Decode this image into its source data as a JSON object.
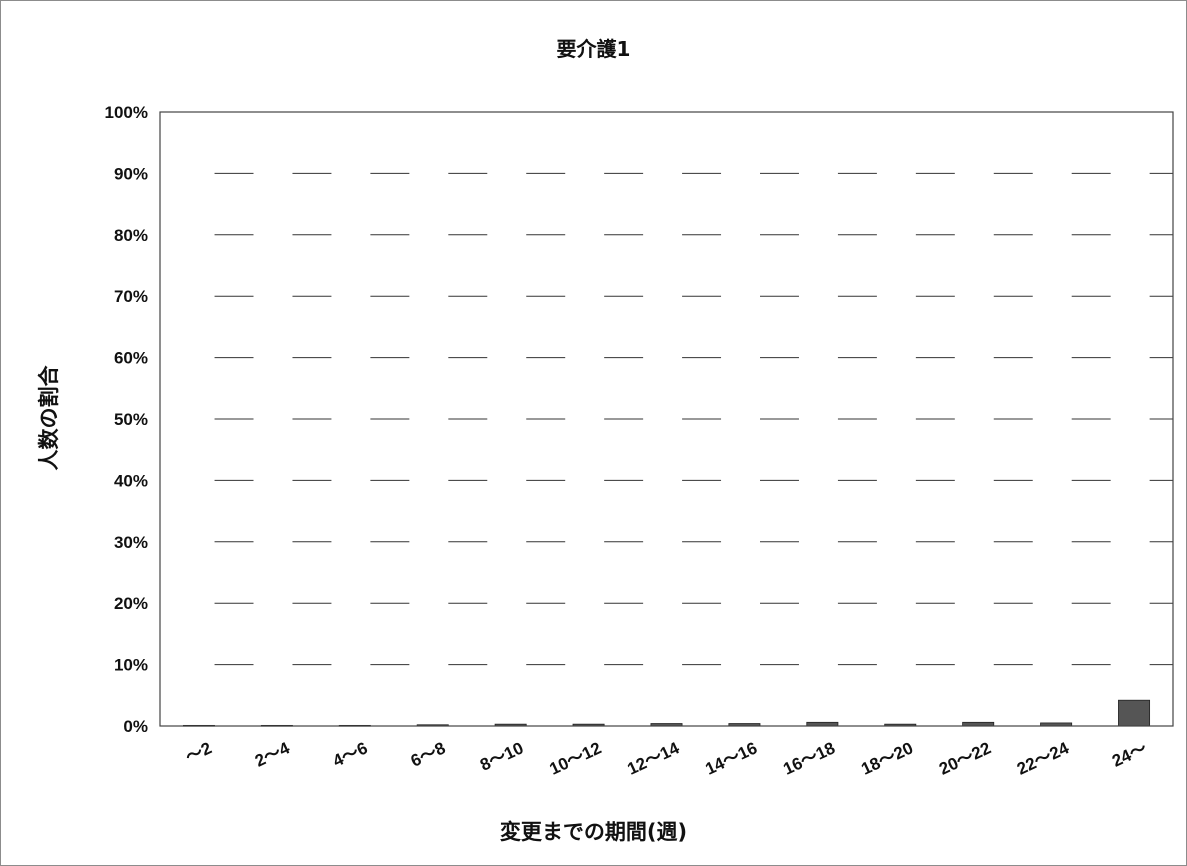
{
  "chart_data": {
    "type": "bar",
    "title": "要介護1",
    "xlabel": "変更までの期間(週)",
    "ylabel": "人数の割合",
    "categories": [
      "～2",
      "2～4",
      "4～6",
      "6～8",
      "8～10",
      "10～12",
      "12～14",
      "14～16",
      "16～18",
      "18～20",
      "20～22",
      "22～24",
      "24～"
    ],
    "values": [
      0.1,
      0.1,
      0.1,
      0.2,
      0.3,
      0.3,
      0.4,
      0.4,
      0.6,
      0.3,
      0.6,
      0.5,
      4.2
    ],
    "ylim": [
      0,
      100
    ],
    "yticks": [
      "0%",
      "10%",
      "20%",
      "30%",
      "40%",
      "50%",
      "60%",
      "70%",
      "80%",
      "90%",
      "100%"
    ],
    "grid": true,
    "bar_color": "#555555",
    "grid_color": "#333333"
  }
}
